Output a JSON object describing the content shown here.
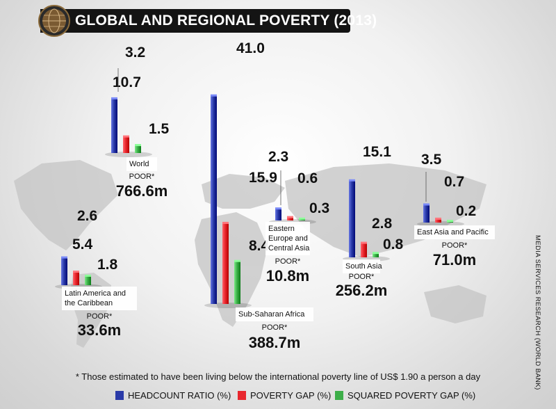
{
  "title": "GLOBAL AND REGIONAL POVERTY (2013)",
  "footnote": "* Those estimated to have been living below the international poverty line of US$ 1.90 a person a day",
  "source": "MEDIA SERVICES RESEARCH (WORLD BANK)",
  "poor_label": "POOR*",
  "legend": [
    {
      "label": "HEADCOUNT RATIO (%)",
      "color": "#2a3aa8"
    },
    {
      "label": "POVERTY GAP (%)",
      "color": "#e8262d"
    },
    {
      "label": "SQUARED POVERTY GAP (%)",
      "color": "#3dae49"
    }
  ],
  "colors": {
    "headcount": "#2a3aa8",
    "gap": "#e8262d",
    "squared": "#3dae49",
    "title_bar": "#141414"
  },
  "chart_data": {
    "type": "bar",
    "title": "GLOBAL AND REGIONAL POVERTY (2013)",
    "series": [
      {
        "name": "HEADCOUNT RATIO (%)",
        "key": "headcount"
      },
      {
        "name": "POVERTY GAP (%)",
        "key": "gap"
      },
      {
        "name": "SQUARED POVERTY GAP (%)",
        "key": "squared"
      }
    ],
    "regions": [
      {
        "name": "World",
        "headcount": "10.7",
        "gap": "3.2",
        "squared": "1.5",
        "poor": "766.6m"
      },
      {
        "name": "Sub-Saharan Africa",
        "headcount": "41.0",
        "gap": "15.9",
        "squared": "8.4",
        "poor": "388.7m"
      },
      {
        "name": "Latin America and the Caribbean",
        "headcount": "5.4",
        "gap": "2.6",
        "squared": "1.8",
        "poor": "33.6m"
      },
      {
        "name": "Eastern Europe and Central Asia",
        "headcount": "2.3",
        "gap": "0.6",
        "squared": "0.3",
        "poor": "10.8m"
      },
      {
        "name": "South Asia",
        "headcount": "15.1",
        "gap": "2.8",
        "squared": "0.8",
        "poor": "256.2m"
      },
      {
        "name": "East Asia and Pacific",
        "headcount": "3.5",
        "gap": "0.7",
        "squared": "0.2",
        "poor": "71.0m"
      }
    ]
  }
}
